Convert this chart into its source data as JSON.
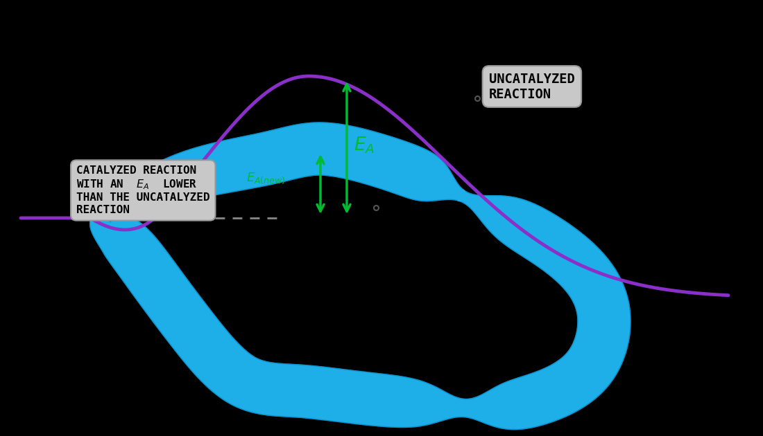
{
  "background_color": "#000000",
  "uncatalyzed_color": "#8B2FC9",
  "catalyzed_color": "#1EAEE8",
  "catalyzed_dark": "#0080BB",
  "arrow_color": "#00BB33",
  "text_color": "#000000",
  "label_color": "#00BB33",
  "box_bg": "#C8C8C8",
  "box_edge": "#999999",
  "dashed_color": "#666666",
  "uncatalyzed_label": "UNCATALYZED\nREACTION",
  "catalyzed_label": "CATALYZED REACTION\nWITH AN  Eₐ  LOWER\nTHAN THE UNCATALYZED\nREACTION",
  "figsize": [
    11.0,
    6.3
  ],
  "dpi": 100
}
